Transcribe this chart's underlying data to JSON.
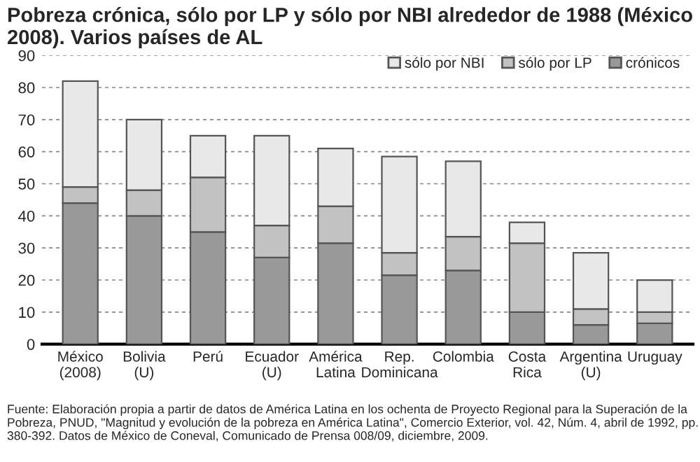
{
  "chart_data": {
    "type": "bar",
    "title": "Pobreza crónica, sólo por LP y sólo por NBI alrededor de 1988 (México 2008). Varios países de AL",
    "categories": [
      "México\n(2008)",
      "Bolivia\n(U)",
      "Perú",
      "Ecuador\n(U)",
      "América\nLatina",
      "Rep.\nDominicana",
      "Colombia",
      "Costa\nRica",
      "Argentina\n(U)",
      "Uruguay"
    ],
    "series": [
      {
        "name": "crónicos",
        "color": "#999999",
        "values": [
          44,
          40,
          35,
          27,
          31.5,
          21.5,
          23,
          10,
          6,
          6.5
        ]
      },
      {
        "name": "sólo por LP",
        "color": "#c2c2c2",
        "values": [
          5,
          8,
          17,
          10,
          11.5,
          7,
          10.5,
          21.5,
          5,
          3.5
        ]
      },
      {
        "name": "sólo por NBI",
        "color": "#e8e8e8",
        "values": [
          33,
          22,
          13,
          28,
          18,
          30,
          23.5,
          6.5,
          17.5,
          10
        ]
      }
    ],
    "stacked": true,
    "ylim": [
      0,
      90
    ],
    "yticks": [
      0,
      10,
      20,
      30,
      40,
      50,
      60,
      70,
      80,
      90
    ],
    "grid": "y",
    "legend": "top right",
    "annotations": [
      "Fuente: Elaboración propia a partir de datos de América Latina en los ochenta de Proyecto Regional para la Superación de la Pobreza, PNUD, \"Magnitud y evolución de la pobreza en América Latina\", Comercio Exterior, vol. 42, Núm. 4, abril de 1992, pp. 380-392. Datos de México de Coneval, Comunicado de Prensa 008/09, diciembre, 2009."
    ]
  }
}
